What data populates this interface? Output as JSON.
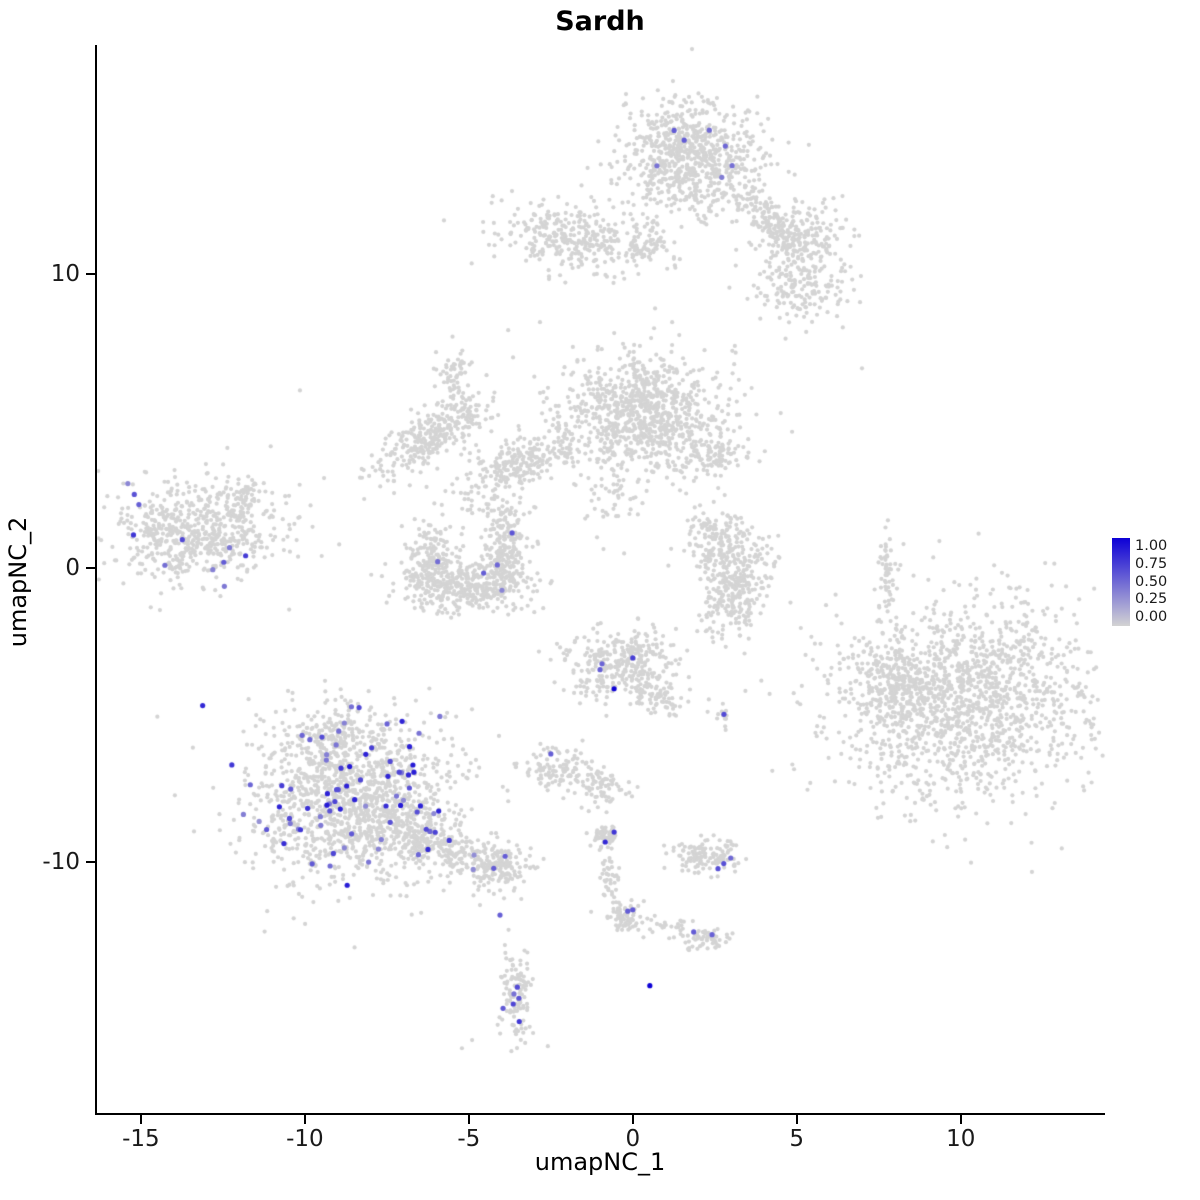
{
  "chart_data": {
    "type": "scatter",
    "title": "Sardh",
    "xlabel": "umapNC_1",
    "ylabel": "umapNC_2",
    "xlim": [
      -16.4,
      14.4
    ],
    "ylim": [
      -18.6,
      17.8
    ],
    "x_ticks": [
      -15,
      -10,
      -5,
      0,
      5,
      10
    ],
    "y_ticks": [
      -10,
      0,
      10
    ],
    "grid": false,
    "legend_position": "right",
    "point_radius": 2.1,
    "expr_point_radius": 2.6,
    "colors": {
      "gray": "#d4d4d4",
      "low": "#d3d3d3",
      "high": "#0d00d6"
    },
    "legend": {
      "ticks": [
        "1.00",
        "0.75",
        "0.50",
        "0.25",
        "0.00"
      ]
    },
    "clusters": [
      {
        "name": "top-main",
        "cx": 1.74,
        "cy": 13.95,
        "sx": 1.05,
        "sy": 0.95,
        "rot": 0,
        "n": 780,
        "expr_n": 7,
        "emin": 0.4,
        "emax": 0.75
      },
      {
        "name": "top-tail",
        "cx": 4.18,
        "cy": 11.84,
        "sx": 0.9,
        "sy": 0.3,
        "rot": -48,
        "n": 130,
        "expr_n": 0
      },
      {
        "name": "top-right",
        "cx": 5.05,
        "cy": 11.3,
        "sx": 0.7,
        "sy": 0.55,
        "rot": 0,
        "n": 200,
        "expr_n": 0
      },
      {
        "name": "top-right-low",
        "cx": 5.1,
        "cy": 9.5,
        "sx": 0.75,
        "sy": 0.55,
        "rot": 0,
        "n": 170,
        "expr_n": 0
      },
      {
        "name": "top-left",
        "cx": -1.76,
        "cy": 11.26,
        "sx": 1.15,
        "sy": 0.55,
        "rot": -8,
        "n": 330,
        "expr_n": 0
      },
      {
        "name": "top-left-arm",
        "cx": 0.45,
        "cy": 11.05,
        "sx": 0.4,
        "sy": 0.35,
        "rot": 0,
        "n": 70,
        "expr_n": 0
      },
      {
        "name": "mid-main",
        "cx": 0.25,
        "cy": 5.3,
        "sx": 1.2,
        "sy": 0.95,
        "rot": 0,
        "n": 880,
        "expr_n": 0
      },
      {
        "name": "mid-left-arm",
        "cx": -3.44,
        "cy": 3.54,
        "sx": 1.1,
        "sy": 0.38,
        "rot": 26,
        "n": 260,
        "expr_n": 0
      },
      {
        "name": "mid-right-arm",
        "cx": 2.41,
        "cy": 3.95,
        "sx": 0.55,
        "sy": 0.45,
        "rot": 0,
        "n": 120,
        "expr_n": 0
      },
      {
        "name": "mid-below-sparse",
        "cx": -0.6,
        "cy": 2.4,
        "sx": 0.45,
        "sy": 0.75,
        "rot": 0,
        "n": 55,
        "expr_n": 0
      },
      {
        "name": "diag-band",
        "cx": -6.03,
        "cy": 4.56,
        "sx": 1.1,
        "sy": 0.42,
        "rot": 34,
        "n": 300,
        "expr_n": 0
      },
      {
        "name": "diag-band-top",
        "cx": -5.42,
        "cy": 6.56,
        "sx": 0.3,
        "sy": 0.45,
        "rot": 0,
        "n": 55,
        "expr_n": 0
      },
      {
        "name": "left-island",
        "cx": -13.29,
        "cy": 1.22,
        "sx": 1.3,
        "sy": 0.85,
        "rot": 0,
        "n": 640,
        "expr_n": 11,
        "emin": 0.35,
        "emax": 0.8
      },
      {
        "name": "left-appendage",
        "cx": -11.85,
        "cy": 2.4,
        "sx": 0.3,
        "sy": 0.35,
        "rot": 0,
        "n": 55,
        "expr_n": 0
      },
      {
        "name": "crescent-left",
        "cx": -6.12,
        "cy": 0.3,
        "sx": 0.45,
        "sy": 0.75,
        "rot": 0,
        "n": 200,
        "expr_n": 1,
        "emin": 0.4,
        "emax": 0.6
      },
      {
        "name": "crescent-bottom",
        "cx": -5.0,
        "cy": -0.65,
        "sx": 1.05,
        "sy": 0.4,
        "rot": 0,
        "n": 320,
        "expr_n": 2,
        "emin": 0.35,
        "emax": 0.6
      },
      {
        "name": "crescent-right",
        "cx": -3.9,
        "cy": 0.45,
        "sx": 0.4,
        "sy": 0.7,
        "rot": 0,
        "n": 210,
        "expr_n": 1,
        "emin": 0.45,
        "emax": 0.65
      },
      {
        "name": "crescent-above",
        "cx": -3.9,
        "cy": 1.8,
        "sx": 0.5,
        "sy": 0.35,
        "rot": 0,
        "n": 45,
        "expr_n": 0
      },
      {
        "name": "hook-top",
        "cx": 2.6,
        "cy": 0.95,
        "sx": 0.5,
        "sy": 0.55,
        "rot": 0,
        "n": 160,
        "expr_n": 0
      },
      {
        "name": "hook-bottom",
        "cx": 3.12,
        "cy": -0.6,
        "sx": 0.55,
        "sy": 0.85,
        "rot": -15,
        "n": 280,
        "expr_n": 0
      },
      {
        "name": "right-big",
        "cx": 10.1,
        "cy": -4.5,
        "sx": 1.95,
        "sy": 1.7,
        "rot": 0,
        "n": 1500,
        "expr_n": 0
      },
      {
        "name": "right-big-lobe",
        "cx": 8.0,
        "cy": -4.0,
        "sx": 0.5,
        "sy": 0.8,
        "rot": 0,
        "n": 190,
        "expr_n": 0
      },
      {
        "name": "right-streak",
        "cx": 7.78,
        "cy": -0.2,
        "sx": 0.13,
        "sy": 0.85,
        "rot": 0,
        "n": 55,
        "expr_n": 0
      },
      {
        "name": "center-small",
        "cx": -0.35,
        "cy": -3.3,
        "sx": 0.85,
        "sy": 0.6,
        "rot": 0,
        "n": 330,
        "expr_n": 1,
        "emin": 0.5,
        "emax": 0.8
      },
      {
        "name": "center-small-arm",
        "cx": 0.9,
        "cy": -4.4,
        "sx": 0.45,
        "sy": 0.3,
        "rot": -20,
        "n": 70,
        "expr_n": 0
      },
      {
        "name": "dot-blob",
        "cx": 2.72,
        "cy": -5.0,
        "sx": 0.18,
        "sy": 0.15,
        "rot": 0,
        "n": 12,
        "expr_n": 0
      },
      {
        "name": "small-left",
        "cx": -2.34,
        "cy": -6.87,
        "sx": 0.5,
        "sy": 0.4,
        "rot": 0,
        "n": 110,
        "expr_n": 1,
        "emin": 0.55,
        "emax": 0.65
      },
      {
        "name": "small-left-2",
        "cx": -0.9,
        "cy": -7.45,
        "sx": 0.35,
        "sy": 0.3,
        "rot": 0,
        "n": 70,
        "expr_n": 0
      },
      {
        "name": "bottomleft-main",
        "cx": -8.56,
        "cy": -7.9,
        "sx": 1.55,
        "sy": 1.35,
        "rot": 0,
        "n": 1350,
        "expr_n": 68,
        "emin": 0.3,
        "emax": 0.9
      },
      {
        "name": "bottomleft-top",
        "cx": -9.17,
        "cy": -5.6,
        "sx": 0.55,
        "sy": 0.6,
        "rot": 0,
        "n": 150,
        "expr_n": 4,
        "emin": 0.35,
        "emax": 0.8
      },
      {
        "name": "bottomleft-right",
        "cx": -6.3,
        "cy": -9.25,
        "sx": 0.85,
        "sy": 0.48,
        "rot": -20,
        "n": 280,
        "expr_n": 8,
        "emin": 0.3,
        "emax": 0.8
      },
      {
        "name": "bottomleft-tail",
        "cx": -4.2,
        "cy": -10.1,
        "sx": 0.6,
        "sy": 0.38,
        "rot": -15,
        "n": 180,
        "expr_n": 4,
        "emin": 0.3,
        "emax": 0.6
      },
      {
        "name": "tiny-dense",
        "cx": -0.88,
        "cy": -9.2,
        "sx": 0.2,
        "sy": 0.2,
        "rot": 0,
        "n": 55,
        "expr_n": 2,
        "emin": 0.7,
        "emax": 0.95
      },
      {
        "name": "bottom-mid",
        "cx": 2.23,
        "cy": -9.75,
        "sx": 0.6,
        "sy": 0.28,
        "rot": 0,
        "n": 130,
        "expr_n": 3,
        "emin": 0.5,
        "emax": 0.75
      },
      {
        "name": "trail-1",
        "cx": -0.7,
        "cy": -10.5,
        "sx": 0.18,
        "sy": 0.5,
        "rot": 0,
        "n": 40,
        "expr_n": 0
      },
      {
        "name": "trail-blob-1",
        "cx": -0.24,
        "cy": -11.85,
        "sx": 0.3,
        "sy": 0.25,
        "rot": 0,
        "n": 70,
        "expr_n": 2,
        "emin": 0.5,
        "emax": 0.7
      },
      {
        "name": "trail-bridge",
        "cx": 0.98,
        "cy": -12.2,
        "sx": 0.5,
        "sy": 0.18,
        "rot": 0,
        "n": 25,
        "expr_n": 0
      },
      {
        "name": "trail-blob-2",
        "cx": 2.2,
        "cy": -12.6,
        "sx": 0.38,
        "sy": 0.22,
        "rot": 0,
        "n": 60,
        "expr_n": 2,
        "emin": 0.5,
        "emax": 0.7
      },
      {
        "name": "bottom-strip",
        "cx": -3.53,
        "cy": -14.5,
        "sx": 0.22,
        "sy": 0.75,
        "rot": 0,
        "n": 120,
        "expr_n": 6,
        "emin": 0.4,
        "emax": 0.75
      }
    ],
    "singles_gray": [
      [
        -10.6,
        2.45
      ],
      [
        -10.15,
        6.05
      ],
      [
        -2.83,
        8.37
      ],
      [
        -3.8,
        8.1
      ],
      [
        -6.0,
        7.35
      ],
      [
        -5.63,
        7.07
      ],
      [
        6.93,
        9.05
      ],
      [
        6.99,
        6.8
      ],
      [
        0.68,
        8.84
      ],
      [
        1.2,
        8.37
      ],
      [
        -2.59,
        -16.26
      ],
      [
        -5.21,
        -16.33
      ],
      [
        -4.9,
        -16.05
      ],
      [
        7.78,
        1.63
      ],
      [
        1.44,
        2.65
      ],
      [
        2.05,
        2.14
      ],
      [
        -2.07,
        -3.13
      ],
      [
        -4.66,
        -11.46
      ],
      [
        -3.9,
        -12.82
      ],
      [
        -3.74,
        -13.33
      ],
      [
        -0.8,
        -8.3
      ]
    ],
    "singles_expr": [
      [
        0.52,
        -14.2,
        1.0
      ],
      [
        -4.05,
        -11.8,
        0.55
      ],
      [
        -3.68,
        1.2,
        0.6
      ],
      [
        -0.57,
        -4.1,
        1.0
      ],
      [
        -1.0,
        -3.45,
        0.55
      ],
      [
        0.0,
        -3.05,
        0.7
      ],
      [
        2.78,
        -4.97,
        0.65
      ]
    ]
  }
}
